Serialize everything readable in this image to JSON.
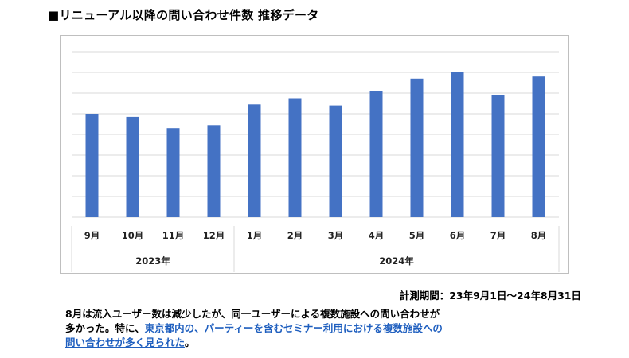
{
  "title": "■リニューアル以降の問い合わせ件数 推移データ",
  "period": "計測期間：23年9月1日〜24年8月31日",
  "note": {
    "line1": "8月は流入ユーザー数は減少したが、同一ユーザーによる複数施設への問い合わせが",
    "line2_prefix": "多かった。特に、",
    "highlight_part1": "東京都内の、パーティーを含むセミナー利用における複数施設への",
    "highlight_part2": "問い合わせが多く見られた",
    "line3_suffix": "。"
  },
  "colors": {
    "bar": "#4472c4",
    "grid": "#d9d9d9",
    "highlight": "#1f5fbf"
  },
  "chart_data": {
    "type": "bar",
    "categories": [
      "9月",
      "10月",
      "11月",
      "12月",
      "1月",
      "2月",
      "3月",
      "4月",
      "5月",
      "6月",
      "7月",
      "8月"
    ],
    "values": [
      50,
      48.5,
      43,
      44.5,
      54.5,
      57.5,
      54,
      61,
      67,
      70,
      59,
      68
    ],
    "year_groups": [
      {
        "label": "2023年",
        "span": 4
      },
      {
        "label": "2024年",
        "span": 8
      }
    ],
    "ylim": [
      0,
      80
    ],
    "y_gridlines": 8,
    "grid": true,
    "y_axis_labels": false
  }
}
